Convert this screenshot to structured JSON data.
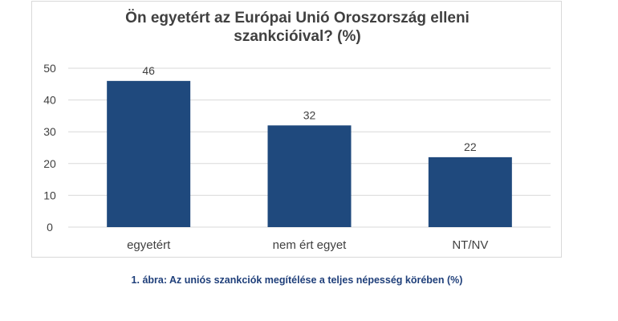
{
  "colors": {
    "bar": "#1f497d",
    "gridline": "#d9d9d9",
    "tick_text": "#404040",
    "caption": "#1f3f7a"
  },
  "chart_data": {
    "type": "bar",
    "title": "Ön egyetért az Európai Unió Oroszország elleni\nszankcióival? (%)",
    "categories": [
      "egyetért",
      "nem ért egyet",
      "NT/NV"
    ],
    "values": [
      46,
      32,
      22
    ],
    "data_labels": [
      "46",
      "32",
      "22"
    ],
    "xlabel": "",
    "ylabel": "",
    "ylim": [
      0,
      50
    ],
    "yticks": [
      0,
      10,
      20,
      30,
      40,
      50
    ],
    "grid": true,
    "legend": "none"
  },
  "caption": "1. ábra: Az uniós szankciók megítélése a teljes népesség körében (%)"
}
